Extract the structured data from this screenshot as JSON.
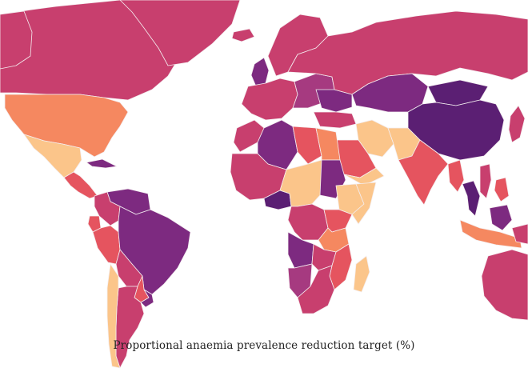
{
  "caption": "Proportional anaemia prevalence reduction target (%)",
  "colors": {
    "background": "#ffffff",
    "border": "#f4eef0",
    "scale": {
      "very_high": "#5b1f73",
      "high": "#7d2a80",
      "mid_high": "#a63a80",
      "mid": "#c83f6e",
      "mid_low": "#e5545f",
      "low": "#f58860",
      "very_low": "#fbc58a",
      "lowest": "#fde0a0"
    }
  },
  "regions": [
    {
      "name": "Canada",
      "level": "mid"
    },
    {
      "name": "Greenland",
      "level": "mid"
    },
    {
      "name": "Alaska",
      "level": "mid"
    },
    {
      "name": "United States",
      "level": "low"
    },
    {
      "name": "Mexico",
      "level": "very_low"
    },
    {
      "name": "Cuba",
      "level": "high"
    },
    {
      "name": "Central America",
      "level": "mid_low"
    },
    {
      "name": "Venezuela",
      "level": "high"
    },
    {
      "name": "Colombia",
      "level": "mid"
    },
    {
      "name": "Ecuador",
      "level": "mid_low"
    },
    {
      "name": "Peru",
      "level": "mid_low"
    },
    {
      "name": "Brazil",
      "level": "high"
    },
    {
      "name": "Bolivia",
      "level": "mid"
    },
    {
      "name": "Paraguay",
      "level": "mid_low"
    },
    {
      "name": "Argentina",
      "level": "mid"
    },
    {
      "name": "Chile",
      "level": "very_low"
    },
    {
      "name": "Uruguay",
      "level": "high"
    },
    {
      "name": "Iceland",
      "level": "mid"
    },
    {
      "name": "Scandinavia",
      "level": "mid"
    },
    {
      "name": "United Kingdom",
      "level": "high"
    },
    {
      "name": "Western Europe",
      "level": "mid"
    },
    {
      "name": "Eastern Europe",
      "level": "mid_high"
    },
    {
      "name": "Ukraine",
      "level": "high"
    },
    {
      "name": "Russia",
      "level": "mid"
    },
    {
      "name": "Kazakhstan",
      "level": "high"
    },
    {
      "name": "Mongolia",
      "level": "very_high"
    },
    {
      "name": "China",
      "level": "very_high"
    },
    {
      "name": "Turkey",
      "level": "mid"
    },
    {
      "name": "Iran",
      "level": "very_low"
    },
    {
      "name": "Saudi Arabia",
      "level": "mid_low"
    },
    {
      "name": "Yemen",
      "level": "very_low"
    },
    {
      "name": "Afghanistan Pakistan",
      "level": "very_low"
    },
    {
      "name": "India",
      "level": "mid_low"
    },
    {
      "name": "Myanmar",
      "level": "mid_low"
    },
    {
      "name": "Thailand",
      "level": "very_high"
    },
    {
      "name": "Vietnam",
      "level": "mid"
    },
    {
      "name": "Indonesia",
      "level": "low"
    },
    {
      "name": "Borneo",
      "level": "high"
    },
    {
      "name": "Papua New Guinea",
      "level": "mid"
    },
    {
      "name": "Australia",
      "level": "mid"
    },
    {
      "name": "Morocco",
      "level": "mid"
    },
    {
      "name": "Algeria",
      "level": "high"
    },
    {
      "name": "Libya",
      "level": "mid_low"
    },
    {
      "name": "Egypt",
      "level": "low"
    },
    {
      "name": "Sudan",
      "level": "high"
    },
    {
      "name": "Ethiopia",
      "level": "very_low"
    },
    {
      "name": "Somalia",
      "level": "very_low"
    },
    {
      "name": "West Africa",
      "level": "mid"
    },
    {
      "name": "Nigeria",
      "level": "very_high"
    },
    {
      "name": "Central Africa",
      "level": "very_low"
    },
    {
      "name": "DR Congo",
      "level": "mid"
    },
    {
      "name": "Kenya",
      "level": "mid_low"
    },
    {
      "name": "Tanzania",
      "level": "low"
    },
    {
      "name": "Angola",
      "level": "high"
    },
    {
      "name": "Zambia",
      "level": "mid"
    },
    {
      "name": "Mozambique",
      "level": "mid_low"
    },
    {
      "name": "Namibia",
      "level": "mid_high"
    },
    {
      "name": "South Africa",
      "level": "mid"
    },
    {
      "name": "Madagascar",
      "level": "very_low"
    },
    {
      "name": "Japan",
      "level": "mid"
    },
    {
      "name": "Philippines",
      "level": "mid_low"
    }
  ]
}
